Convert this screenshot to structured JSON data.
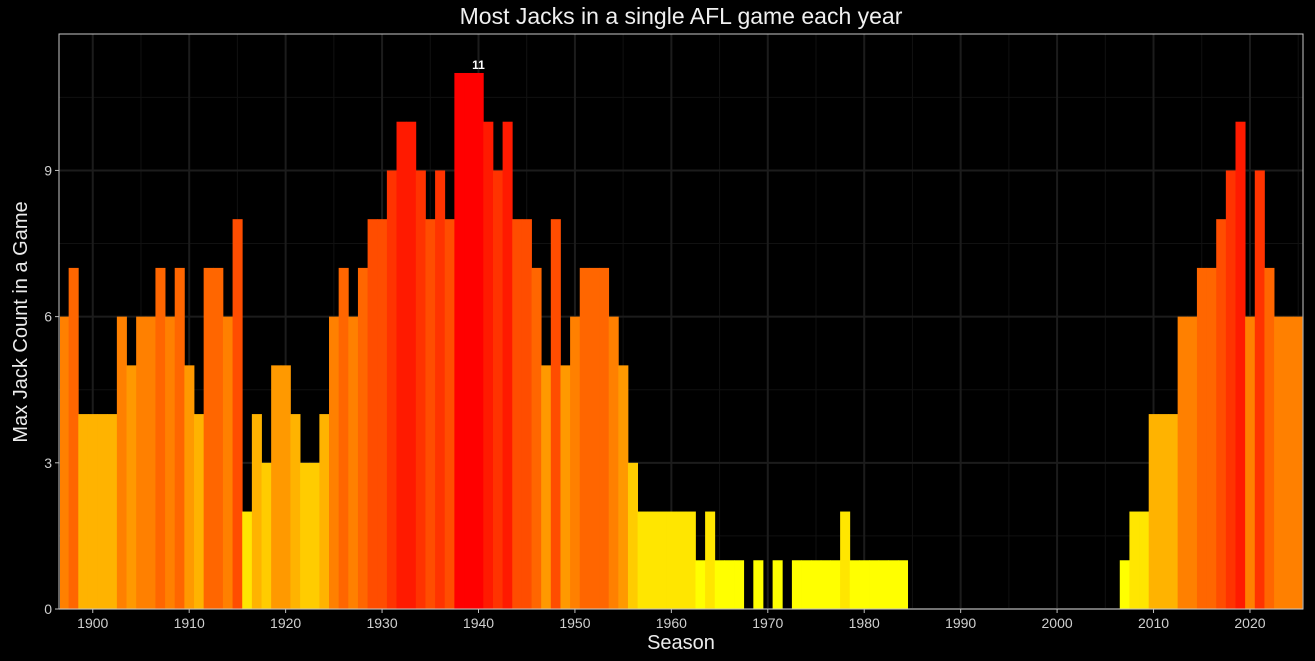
{
  "chart_data": {
    "type": "bar",
    "title": "Most Jacks in a single AFL game each year",
    "xlabel": "Season",
    "ylabel": "Max Jack Count in a Game",
    "xlim": [
      1896.5,
      2025.5
    ],
    "ylim": [
      0,
      11.8
    ],
    "x_ticks": [
      1900,
      1910,
      1920,
      1930,
      1940,
      1950,
      1960,
      1970,
      1980,
      1990,
      2000,
      2010,
      2020
    ],
    "y_ticks": [
      0,
      3,
      6,
      9
    ],
    "grid": true,
    "color_scale": {
      "low": "#ffff00",
      "high": "#ff0000",
      "min": 1,
      "max": 11
    },
    "annotation": {
      "x": 1940,
      "value": 11,
      "text": "11"
    },
    "x": [
      1897,
      1898,
      1899,
      1900,
      1901,
      1902,
      1903,
      1904,
      1905,
      1906,
      1907,
      1908,
      1909,
      1910,
      1911,
      1912,
      1913,
      1914,
      1915,
      1916,
      1917,
      1918,
      1919,
      1920,
      1921,
      1922,
      1923,
      1924,
      1925,
      1926,
      1927,
      1928,
      1929,
      1930,
      1931,
      1932,
      1933,
      1934,
      1935,
      1936,
      1937,
      1938,
      1939,
      1940,
      1941,
      1942,
      1943,
      1944,
      1945,
      1946,
      1947,
      1948,
      1949,
      1950,
      1951,
      1952,
      1953,
      1954,
      1955,
      1956,
      1957,
      1958,
      1959,
      1960,
      1961,
      1962,
      1963,
      1964,
      1965,
      1966,
      1967,
      1968,
      1969,
      1970,
      1971,
      1972,
      1973,
      1974,
      1975,
      1976,
      1977,
      1978,
      1979,
      1980,
      1981,
      1982,
      1983,
      1984,
      1985,
      1986,
      1987,
      1988,
      1989,
      1990,
      1991,
      1992,
      1993,
      1994,
      1995,
      1996,
      1997,
      1998,
      1999,
      2000,
      2001,
      2002,
      2003,
      2004,
      2005,
      2006,
      2007,
      2008,
      2009,
      2010,
      2011,
      2012,
      2013,
      2014,
      2015,
      2016,
      2017,
      2018,
      2019,
      2020,
      2021,
      2022,
      2023,
      2024,
      2025
    ],
    "values": [
      6,
      7,
      4,
      4,
      4,
      4,
      6,
      5,
      6,
      6,
      7,
      6,
      7,
      5,
      4,
      7,
      7,
      6,
      8,
      2,
      4,
      3,
      5,
      5,
      4,
      3,
      3,
      4,
      6,
      7,
      6,
      7,
      8,
      8,
      9,
      10,
      10,
      9,
      8,
      9,
      8,
      11,
      11,
      11,
      10,
      9,
      10,
      8,
      8,
      7,
      5,
      8,
      5,
      6,
      7,
      7,
      7,
      6,
      5,
      3,
      2,
      2,
      2,
      2,
      2,
      2,
      1,
      2,
      1,
      1,
      1,
      0,
      1,
      0,
      1,
      0,
      1,
      1,
      1,
      1,
      1,
      2,
      1,
      1,
      1,
      1,
      1,
      1,
      0,
      0,
      0,
      0,
      0,
      0,
      0,
      0,
      0,
      0,
      0,
      0,
      0,
      0,
      0,
      0,
      0,
      0,
      0,
      0,
      0,
      0,
      1,
      2,
      2,
      4,
      4,
      4,
      6,
      6,
      7,
      7,
      8,
      9,
      10,
      6,
      9,
      7,
      6,
      6,
      6
    ]
  }
}
